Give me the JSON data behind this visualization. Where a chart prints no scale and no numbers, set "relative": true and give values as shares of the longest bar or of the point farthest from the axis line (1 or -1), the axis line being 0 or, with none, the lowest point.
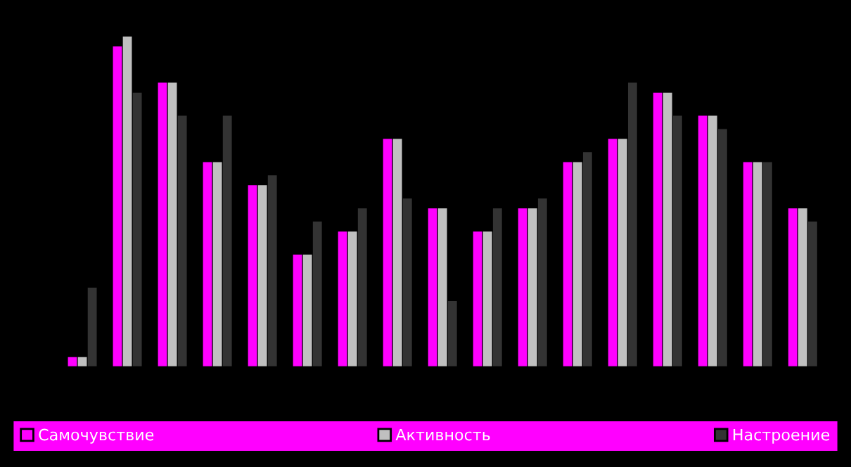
{
  "chart_data": {
    "type": "bar",
    "relative": true,
    "categories": [
      null,
      null,
      null,
      null,
      null,
      null,
      null,
      null,
      null,
      null,
      null,
      null,
      null,
      null,
      null,
      null,
      null
    ],
    "series": [
      {
        "name": "Самочувствие",
        "color": "#ff00ff",
        "values": [
          0.03,
          0.97,
          0.86,
          0.62,
          0.55,
          0.34,
          0.41,
          0.69,
          0.48,
          0.41,
          0.48,
          0.62,
          0.69,
          0.83,
          0.76,
          0.62,
          0.48
        ]
      },
      {
        "name": "Активность",
        "color": "#c0c0c0",
        "values": [
          0.03,
          1,
          0.86,
          0.62,
          0.55,
          0.34,
          0.41,
          0.69,
          0.48,
          0.41,
          0.48,
          0.62,
          0.69,
          0.83,
          0.76,
          0.62,
          0.48
        ]
      },
      {
        "name": "Настроение",
        "color": "#333333",
        "values": [
          0.24,
          0.83,
          0.76,
          0.76,
          0.58,
          0.44,
          0.48,
          0.51,
          0.2,
          0.48,
          0.51,
          0.65,
          0.86,
          0.76,
          0.72,
          0.62,
          0.44
        ]
      }
    ],
    "legend": "bottom",
    "grid": false
  }
}
